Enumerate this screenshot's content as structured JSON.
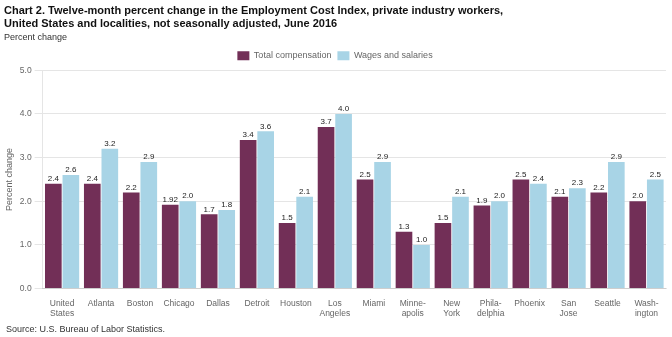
{
  "chart_data": {
    "type": "bar",
    "title": [
      "Chart 2. Twelve-month percent change in the Employment Cost Index, private industry workers,",
      "United States and localities, not seasonally adjusted, June 2016"
    ],
    "subtitle": "Percent change",
    "ylabel": "Percent change",
    "annotations": [
      "Source: U.S. Bureau of Labor Statistics."
    ],
    "categories": [
      "United\nStates",
      "Atlanta",
      "Boston",
      "Chicago",
      "Dallas",
      "Detroit",
      "Houston",
      "Los\nAngeles",
      "Miami",
      "Minne-\napolis",
      "New\nYork",
      "Phila-\ndelphia",
      "Phoenix",
      "San\nJose",
      "Seattle",
      "Wash-\nington"
    ],
    "series": [
      {
        "name": "Total compensation",
        "color": "#722F57",
        "values": [
          2.4,
          2.4,
          2.2,
          1.92,
          1.7,
          3.4,
          1.5,
          3.7,
          2.5,
          1.3,
          1.5,
          1.9,
          2.5,
          2.1,
          2.2,
          2.0
        ],
        "value_labels": [
          "2.4",
          "2.4",
          "2.2",
          "1.92",
          "1.7",
          "3.4",
          "1.5",
          "3.7",
          "2.5",
          "1.3",
          "1.5",
          "1.9",
          "2.5",
          "2.1",
          "2.2",
          "2.0"
        ]
      },
      {
        "name": "Wages and salaries",
        "color": "#A8D4E6",
        "values": [
          2.6,
          3.2,
          2.9,
          2.0,
          1.8,
          3.6,
          2.1,
          4.0,
          2.9,
          1.0,
          2.1,
          2.0,
          2.4,
          2.3,
          2.9,
          2.5
        ],
        "value_labels": [
          "2.6",
          "3.2",
          "2.9",
          "2.0",
          "1.8",
          "3.6",
          "2.1",
          "4.0",
          "2.9",
          "1.0",
          "2.1",
          "2.0",
          "2.4",
          "2.3",
          "2.9",
          "2.5"
        ]
      }
    ],
    "ylim": [
      0,
      5.0
    ],
    "yticks": [
      {
        "value": 0,
        "label": "0.0"
      },
      {
        "value": 1,
        "label": "1.0"
      },
      {
        "value": 2,
        "label": "2.0"
      },
      {
        "value": 3,
        "label": "3.0"
      },
      {
        "value": 4,
        "label": "4.0"
      },
      {
        "value": 5,
        "label": "5.0"
      }
    ],
    "grid": true,
    "legend": "top",
    "data_labels": true
  }
}
